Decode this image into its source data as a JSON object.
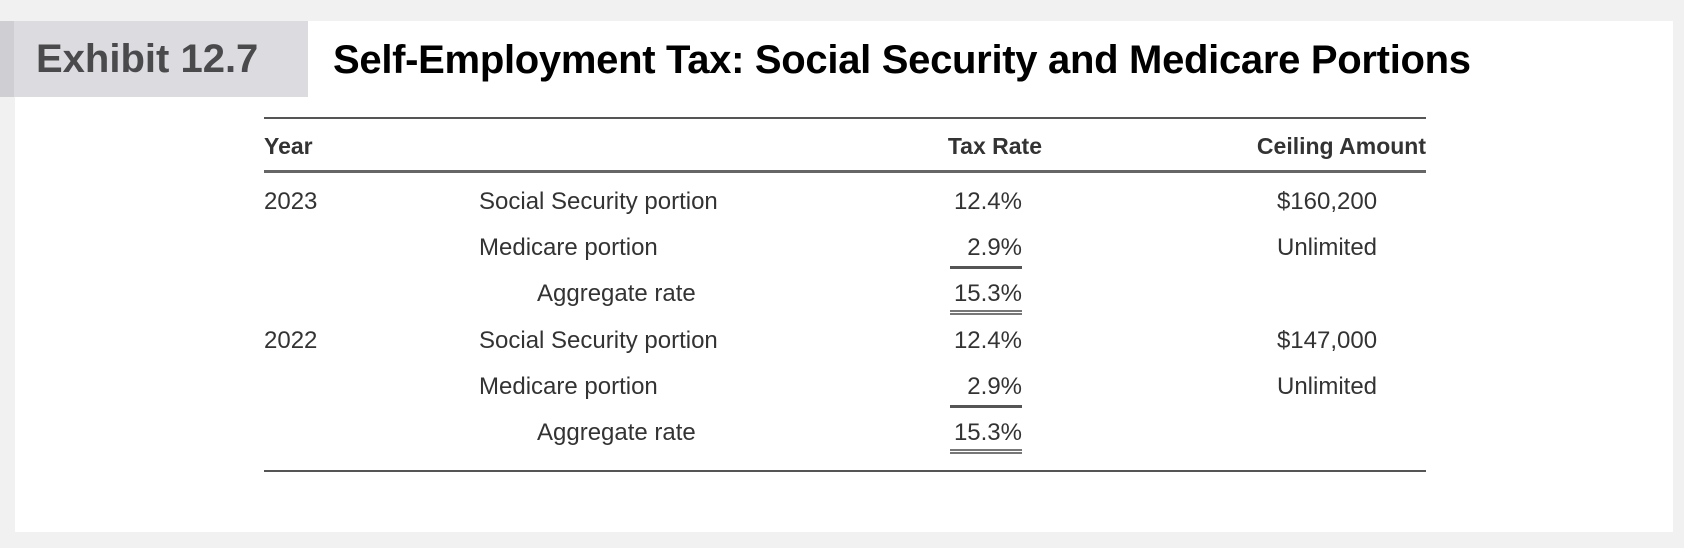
{
  "exhibit_label": "Exhibit 12.7",
  "title": "Self-Employment Tax: Social Security and Medicare Portions",
  "table": {
    "headers": {
      "year": "Year",
      "description": "",
      "tax_rate": "Tax Rate",
      "ceiling": "Ceiling Amount"
    },
    "rows": [
      {
        "year": "2023",
        "description": "Social Security portion",
        "tax_rate": "12.4%",
        "ceiling": "$160,200"
      },
      {
        "year": "",
        "description": "Medicare portion",
        "tax_rate": "2.9%",
        "ceiling": "Unlimited"
      },
      {
        "year": "",
        "description": "Aggregate rate",
        "tax_rate": "15.3%",
        "ceiling": ""
      },
      {
        "year": "2022",
        "description": "Social Security portion",
        "tax_rate": "12.4%",
        "ceiling": "$147,000"
      },
      {
        "year": "",
        "description": "Medicare portion",
        "tax_rate": "2.9%",
        "ceiling": "Unlimited"
      },
      {
        "year": "",
        "description": "Aggregate rate",
        "tax_rate": "15.3%",
        "ceiling": ""
      }
    ]
  }
}
